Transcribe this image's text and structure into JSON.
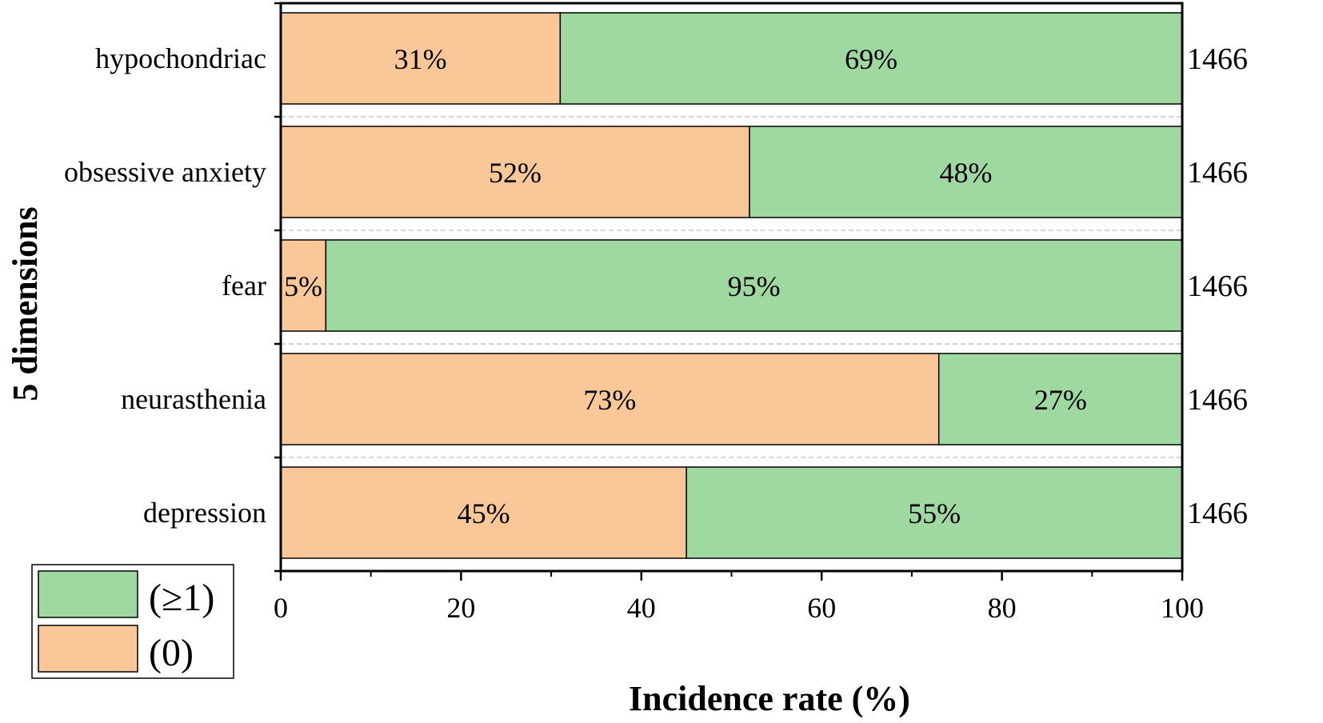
{
  "chart_data": {
    "type": "bar",
    "orientation": "horizontal",
    "stacked": true,
    "title": "",
    "xlabel": "Incidence rate (%)",
    "ylabel": "5 dimensions",
    "xlim": [
      0,
      100
    ],
    "xticks": [
      "0",
      "20",
      "40",
      "60",
      "80",
      "100"
    ],
    "categories": [
      "hypochondriac",
      "obsessive anxiety",
      "fear",
      "neurasthenia",
      "depression"
    ],
    "series": [
      {
        "name": "(0)",
        "color": "#FAC898",
        "values": [
          31,
          52,
          5,
          73,
          45
        ],
        "labels": [
          "31%",
          "52%",
          "5%",
          "73%",
          "45%"
        ]
      },
      {
        "name": "(≥1)",
        "color": "#9FD8A0",
        "values": [
          69,
          48,
          95,
          27,
          55
        ],
        "labels": [
          "69%",
          "48%",
          "95%",
          "27%",
          "55%"
        ]
      }
    ],
    "right_labels": [
      "1466",
      "1466",
      "1466",
      "1466",
      "1466"
    ],
    "legend": {
      "position": "bottom-left",
      "entries": [
        "(≥1)",
        "(0)"
      ]
    }
  }
}
